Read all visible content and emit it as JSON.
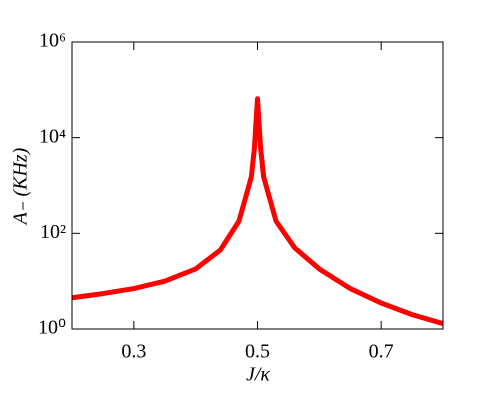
{
  "chart_data": {
    "type": "line",
    "x_label": "J/κ",
    "y_label": "A₋ (KHz)",
    "x": [
      0.2,
      0.25,
      0.3,
      0.35,
      0.4,
      0.44,
      0.47,
      0.49,
      0.495,
      0.5,
      0.505,
      0.51,
      0.53,
      0.56,
      0.6,
      0.65,
      0.7,
      0.75,
      0.8
    ],
    "series": [
      {
        "name": "A₋",
        "color": "#ff0000",
        "values": [
          4.5,
          5.5,
          7,
          10,
          18,
          45,
          180,
          1500,
          6000,
          65000,
          6000,
          1500,
          180,
          50,
          18,
          7,
          3.5,
          2,
          1.3
        ]
      }
    ],
    "xlim": [
      0.2,
      0.8
    ],
    "xticks": [
      0.3,
      0.5,
      0.7
    ],
    "ylim": [
      1,
      1000000
    ],
    "log_y": true,
    "yticks": [
      {
        "value": 1,
        "label": "10⁰"
      },
      {
        "value": 100,
        "label": "10²"
      },
      {
        "value": 10000,
        "label": "10⁴"
      },
      {
        "value": 1000000,
        "label": "10⁶"
      }
    ]
  }
}
